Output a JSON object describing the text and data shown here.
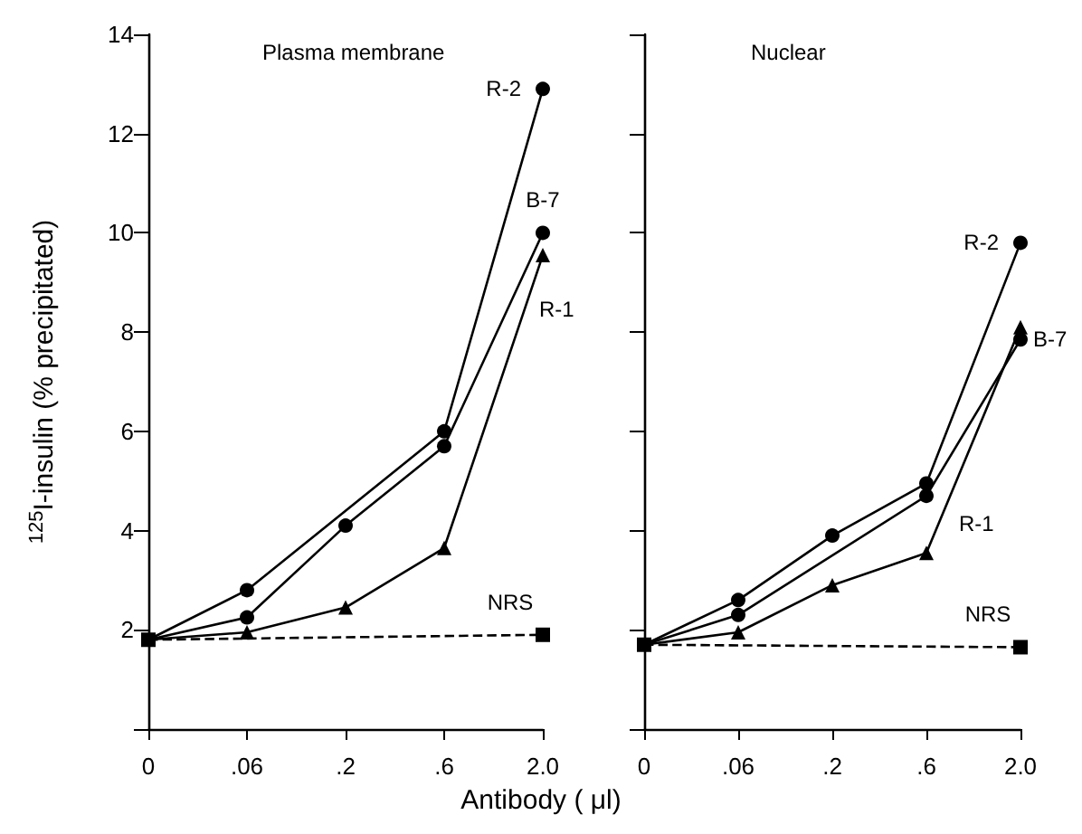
{
  "chart_data": [
    {
      "type": "line",
      "title": "Plasma membrane",
      "xlabel": "Antibody ( μl)",
      "ylabel": "$^{125}$I-insulin (% precipitated)",
      "categories": [
        "0",
        ".06",
        ".2",
        ".6",
        "2.0"
      ],
      "ylim": [
        0,
        14
      ],
      "yticks": [
        {
          "value": 0,
          "label": null
        },
        2,
        4,
        6,
        8,
        10,
        12,
        14
      ],
      "grid": false,
      "legend": false,
      "series": [
        {
          "name": "NRS",
          "color": "#000000",
          "marker": "square",
          "line_style": "dashed",
          "values": [
            1.8,
            null,
            null,
            null,
            1.9
          ]
        },
        {
          "name": "R-2",
          "color": "#000000",
          "marker": "circle",
          "line_style": "solid",
          "values": [
            1.8,
            2.8,
            null,
            6.0,
            12.9
          ]
        },
        {
          "name": "B-7",
          "color": "#000000",
          "marker": "circle",
          "line_style": "solid",
          "values": [
            1.8,
            2.25,
            4.1,
            5.7,
            10.0
          ]
        },
        {
          "name": "R-1",
          "color": "#000000",
          "marker": "triangle",
          "line_style": "solid",
          "values": [
            1.8,
            1.95,
            2.45,
            3.65,
            9.55
          ]
        }
      ]
    },
    {
      "type": "line",
      "title": "Nuclear",
      "categories": [
        "0",
        ".06",
        ".2",
        ".6",
        "2.0"
      ],
      "ylim": [
        0,
        14
      ],
      "yticks": [
        0,
        2,
        4,
        6,
        8,
        10,
        12,
        14
      ],
      "tick_labels": "x",
      "grid": false,
      "legend": false,
      "series": [
        {
          "name": "NRS",
          "color": "#000000",
          "marker": "square",
          "line_style": "dashed",
          "values": [
            1.7,
            null,
            null,
            null,
            1.65
          ]
        },
        {
          "name": "R-2",
          "color": "#000000",
          "marker": "circle",
          "line_style": "solid",
          "values": [
            1.7,
            2.6,
            3.9,
            4.95,
            9.8
          ]
        },
        {
          "name": "B-7",
          "color": "#000000",
          "marker": "circle",
          "line_style": "solid",
          "values": [
            1.7,
            2.3,
            null,
            4.7,
            7.85
          ]
        },
        {
          "name": "R-1",
          "color": "#000000",
          "marker": "triangle",
          "line_style": "solid",
          "values": [
            1.7,
            1.95,
            2.9,
            3.55,
            8.1
          ]
        }
      ]
    }
  ]
}
